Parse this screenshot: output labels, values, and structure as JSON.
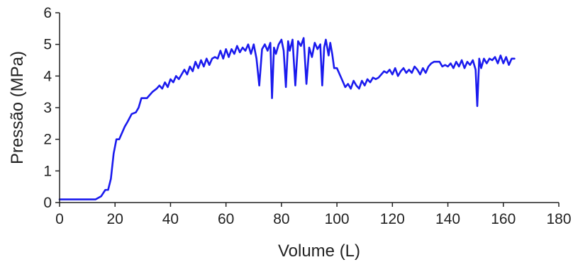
{
  "chart_data": {
    "type": "line",
    "xlabel": "Volume (L)",
    "ylabel": "Pressão (MPa)",
    "xlim": [
      0,
      180
    ],
    "ylim": [
      0,
      6
    ],
    "x_ticks": [
      "0",
      "20",
      "40",
      "60",
      "80",
      "100",
      "120",
      "140",
      "160",
      "180"
    ],
    "y_ticks": [
      "0",
      "1",
      "2",
      "3",
      "4",
      "5",
      "6"
    ],
    "grid": false,
    "legend": "none",
    "line_color": "#1a1aee",
    "series": [
      {
        "x": [
          0,
          13,
          15,
          16.5,
          17.5,
          18.5,
          19.5,
          20.5,
          21.5,
          22.5,
          23.5,
          24.5,
          26,
          27.5,
          28.5,
          29.5,
          30.5,
          31.5,
          32.5,
          33.5,
          35,
          36,
          37,
          38,
          39,
          40,
          41,
          42,
          43,
          44,
          45,
          46,
          47,
          48,
          49,
          50,
          51,
          52,
          53,
          54,
          55,
          56,
          57,
          58,
          59,
          60,
          61,
          62,
          63,
          64,
          65,
          66,
          67,
          68,
          69,
          70,
          71,
          72,
          73,
          74,
          75,
          76,
          76.6,
          77.3,
          78,
          79,
          80,
          80.8,
          81.6,
          82.4,
          83,
          84,
          85,
          86,
          87,
          88,
          89,
          90,
          91,
          92,
          93,
          94,
          94.7,
          95.4,
          96,
          97,
          97.6,
          98.3,
          99,
          100,
          101,
          102,
          103,
          104,
          105,
          106,
          107,
          108,
          109,
          110,
          111,
          112,
          113,
          114,
          115,
          116,
          117,
          118,
          119,
          120,
          121,
          122,
          123,
          124,
          125,
          126,
          127,
          128,
          129,
          130,
          131,
          132,
          133,
          134,
          135,
          136,
          137,
          138,
          139,
          140,
          141,
          142,
          143,
          144,
          145,
          146,
          147,
          148,
          149,
          150,
          150.6,
          151.3,
          152,
          153,
          154,
          155,
          156,
          157,
          158,
          159,
          160,
          161,
          162,
          163,
          164
        ],
        "y": [
          0.1,
          0.1,
          0.2,
          0.4,
          0.4,
          0.75,
          1.55,
          2.0,
          2.0,
          2.2,
          2.4,
          2.55,
          2.8,
          2.85,
          3.0,
          3.3,
          3.3,
          3.3,
          3.4,
          3.5,
          3.6,
          3.7,
          3.6,
          3.8,
          3.65,
          3.9,
          3.8,
          4.0,
          3.9,
          4.05,
          4.2,
          4.05,
          4.3,
          4.15,
          4.45,
          4.25,
          4.5,
          4.3,
          4.55,
          4.35,
          4.55,
          4.6,
          4.55,
          4.8,
          4.55,
          4.85,
          4.6,
          4.85,
          4.7,
          4.95,
          4.75,
          4.9,
          4.8,
          5.0,
          4.7,
          5.0,
          4.55,
          3.7,
          4.85,
          5.0,
          4.8,
          5.05,
          3.3,
          4.9,
          4.7,
          5.0,
          5.15,
          4.8,
          3.65,
          5.1,
          4.8,
          5.15,
          3.7,
          5.1,
          4.95,
          5.2,
          3.75,
          4.9,
          4.6,
          5.05,
          4.85,
          5.0,
          3.7,
          4.9,
          5.15,
          4.65,
          5.05,
          4.7,
          4.25,
          4.25,
          4.05,
          3.85,
          3.65,
          3.75,
          3.6,
          3.85,
          3.7,
          3.6,
          3.85,
          3.7,
          3.9,
          3.8,
          3.95,
          3.9,
          3.95,
          4.05,
          4.15,
          4.1,
          4.2,
          4.05,
          4.25,
          4.0,
          4.15,
          4.25,
          4.1,
          4.2,
          4.1,
          4.3,
          4.2,
          4.05,
          4.25,
          4.1,
          4.3,
          4.4,
          4.45,
          4.45,
          4.45,
          4.3,
          4.35,
          4.3,
          4.4,
          4.25,
          4.45,
          4.3,
          4.5,
          4.25,
          4.45,
          4.35,
          4.5,
          4.2,
          3.05,
          4.55,
          4.25,
          4.55,
          4.4,
          4.55,
          4.5,
          4.6,
          4.4,
          4.65,
          4.4,
          4.6,
          4.35,
          4.55,
          4.55
        ]
      }
    ]
  }
}
